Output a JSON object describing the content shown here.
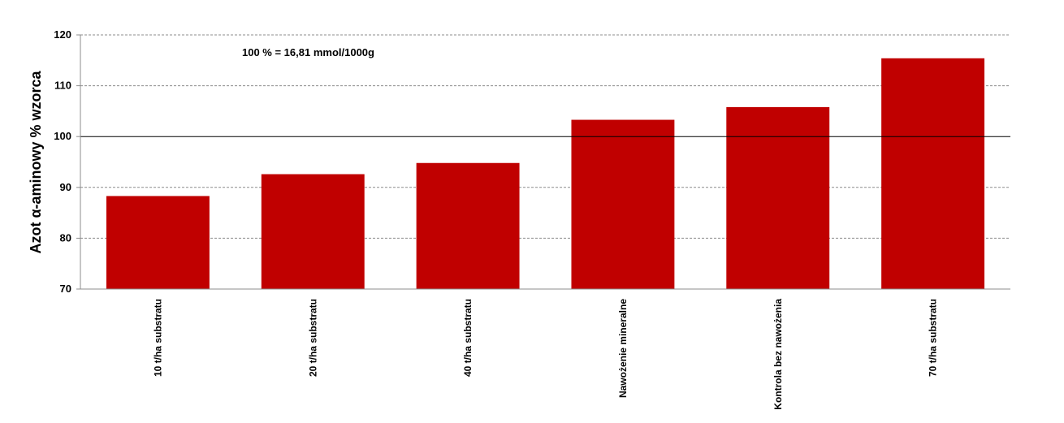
{
  "chart_data": {
    "type": "bar",
    "categories": [
      "10 t/ha substratu",
      "20 t/ha substratu",
      "40 t/ha substratu",
      "Nawożenie mineralne",
      "Kontrola bez nawożenia",
      "70 t/ha substratu"
    ],
    "values": [
      88.3,
      92.6,
      94.8,
      103.3,
      105.8,
      115.4
    ],
    "title": "",
    "xlabel": "",
    "ylabel": "Azot α-aminowy % wzorca",
    "ylim": [
      70,
      120
    ],
    "yticks": [
      70,
      80,
      90,
      100,
      110,
      120
    ],
    "reference_line": 100,
    "annotation": "100 % = 16,81 mmol/1000g",
    "grid": "horizontal dashed",
    "legend": "none",
    "bar_color": "#c00000"
  }
}
